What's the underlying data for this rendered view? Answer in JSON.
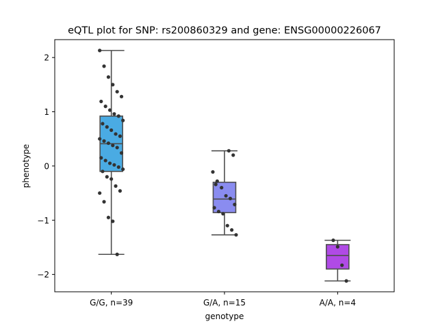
{
  "chart_data": {
    "type": "box",
    "title": "eQTL plot for SNP: rs200860329 and gene: ENSG00000226067",
    "xlabel": "genotype",
    "ylabel": "phenotype",
    "ylim": [
      -2.32,
      2.33
    ],
    "yticks": [
      -2,
      -1,
      0,
      1,
      2
    ],
    "yticklabels": [
      "−2",
      "−1",
      "0",
      "1",
      "2"
    ],
    "categories": [
      "G/G, n=39",
      "G/A, n=15",
      "A/A, n=4"
    ],
    "grid": false,
    "legend": "none",
    "boxes": [
      {
        "category": "G/G, n=39",
        "color": "#4aabe3",
        "q1": -0.1,
        "median": 0.41,
        "q3": 0.92,
        "whisker_low": -1.63,
        "whisker_high": 2.13
      },
      {
        "category": "G/A, n=15",
        "color": "#8a8cf0",
        "q1": -0.86,
        "median": -0.61,
        "q3": -0.3,
        "whisker_low": -1.27,
        "whisker_high": 0.28
      },
      {
        "category": "A/A, n=4",
        "color": "#b04ae6",
        "q1": -1.9,
        "median": -1.65,
        "q3": -1.45,
        "whisker_low": -2.12,
        "whisker_high": -1.37
      }
    ],
    "points": [
      {
        "category": "G/G, n=39",
        "values": [
          2.13,
          1.84,
          1.64,
          1.5,
          1.37,
          1.28,
          1.19,
          1.1,
          1.03,
          0.96,
          0.92,
          0.84,
          0.78,
          0.72,
          0.66,
          0.59,
          0.55,
          0.5,
          0.46,
          0.42,
          0.38,
          0.34,
          0.24,
          0.15,
          0.1,
          0.05,
          0.02,
          -0.02,
          -0.06,
          -0.1,
          -0.2,
          -0.24,
          -0.37,
          -0.46,
          -0.5,
          -0.66,
          -0.95,
          -1.02,
          -1.63
        ]
      },
      {
        "category": "G/A, n=15",
        "values": [
          0.28,
          0.2,
          -0.11,
          -0.28,
          -0.4,
          -0.55,
          -0.6,
          -0.71,
          -0.77,
          -0.84,
          -0.88,
          -1.1,
          -1.18,
          -1.27,
          -0.34
        ]
      },
      {
        "category": "A/A, n=4",
        "values": [
          -1.37,
          -1.49,
          -1.83,
          -2.12
        ]
      }
    ]
  }
}
